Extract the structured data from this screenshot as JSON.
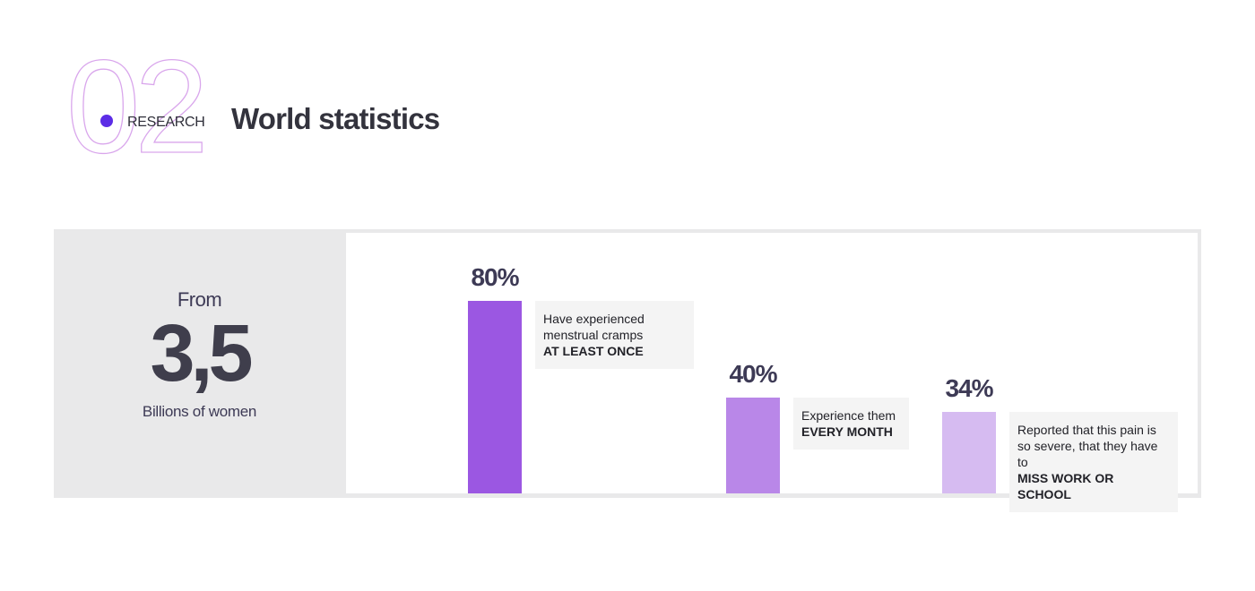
{
  "header": {
    "section_number": "02",
    "section_label": "RESEARCH",
    "title": "World statistics"
  },
  "summary": {
    "prefix": "From",
    "value": "3,5",
    "caption": "Billions of women"
  },
  "colors": {
    "accent_dot": "#5c2de6",
    "number_outline": "#d9a6ec",
    "bar_1": "#9b57e2",
    "bar_2": "#b987e8",
    "bar_3": "#d6bbf1"
  },
  "chart_data": {
    "type": "bar",
    "ylim": [
      0,
      100
    ],
    "categories": [
      "Have experienced menstrual cramps AT LEAST ONCE",
      "Experience them EVERY MONTH",
      "Reported that this pain is so severe, that they have to MISS WORK OR SCHOOL"
    ],
    "values": [
      80,
      40,
      34
    ],
    "value_labels": [
      "80%",
      "40%",
      "34%"
    ],
    "notes": [
      {
        "text": "Have experienced menstrual cramps",
        "emphasis": "AT LEAST ONCE"
      },
      {
        "text": "Experience them",
        "emphasis": "EVERY MONTH"
      },
      {
        "text": "Reported that this pain is so severe, that they have to",
        "emphasis": "MISS WORK OR SCHOOL"
      }
    ]
  }
}
